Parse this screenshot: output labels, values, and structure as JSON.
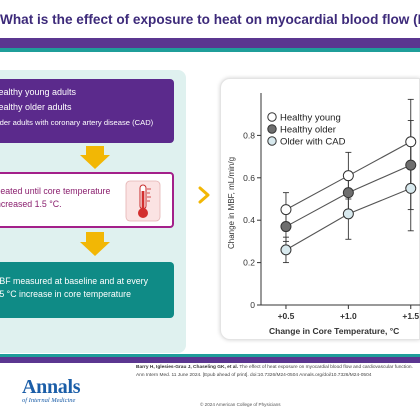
{
  "header": {
    "title": "What is the effect of exposure to heat on myocardial blood flow (MBF)?"
  },
  "groups_box": {
    "lines": [
      "Healthy young adults",
      "Healthy older adults",
      "Older adults with coronary artery disease (CAD)"
    ]
  },
  "heat_box": {
    "line1": "Heated until core temperature",
    "line2": "increased 1.5 °C."
  },
  "measure_box": {
    "line1": "MBF measured at baseline and at every",
    "line2": "0.5 °C increase in core temperature"
  },
  "chart_data": {
    "type": "line",
    "title": "",
    "xlabel": "Change in Core Temperature, °C",
    "ylabel": "Change in MBF, mL/min/g",
    "categories": [
      "+0.5",
      "+1.0",
      "+1.5"
    ],
    "x": [
      0.5,
      1.0,
      1.5
    ],
    "xlim": [
      0.3,
      1.55
    ],
    "ylim": [
      0,
      1.0
    ],
    "yticks": [
      0,
      0.2,
      0.4,
      0.6,
      0.8
    ],
    "ytick_labels": [
      "0",
      "0.2",
      "0.4",
      "0.6",
      "0.8"
    ],
    "grid": false,
    "legend_position": "top-left",
    "series": [
      {
        "name": "Healthy young",
        "values": [
          0.45,
          0.61,
          0.77
        ],
        "errors": [
          0.08,
          0.11,
          0.2
        ],
        "fill": "#ffffff"
      },
      {
        "name": "Healthy older",
        "values": [
          0.37,
          0.53,
          0.66
        ],
        "errors": [
          0.07,
          0.08,
          0.21
        ],
        "fill": "#6e6e6e"
      },
      {
        "name": "Older with CAD",
        "values": [
          0.26,
          0.43,
          0.55
        ],
        "errors": [
          0.06,
          0.12,
          0.2
        ],
        "fill": "#d8e9ee"
      }
    ]
  },
  "footer": {
    "citation_authors": "Barry H, Iglesies-Grau J, Chaseling GK, et al.",
    "citation_rest": "The effect of heat exposure on myocardial blood flow and cardiovascular function. Ann Intern Med. 11 June 2024. [Epub ahead of print]. doi:10.7326/M24-0504",
    "citation_link": "Annals.org/doi/10.7326/M24-0504",
    "copyright": "© 2024 American College of Physicians",
    "logo_main": "Annals",
    "logo_sub": "of Internal Medicine"
  },
  "colors": {
    "purple": "#5b2a8c",
    "teal": "#0f8b86",
    "magenta": "#a3208a",
    "yellow": "#f2b705",
    "light_teal_panel": "#dff1ef"
  }
}
